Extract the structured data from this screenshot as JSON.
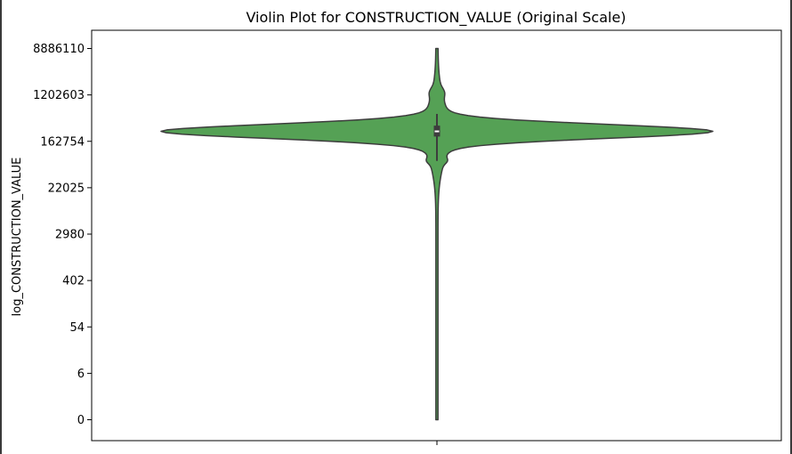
{
  "chart_data": {
    "type": "violin",
    "title": "Violin Plot for CONSTRUCTION_VALUE (Original Scale)",
    "xlabel": "",
    "ylabel": "log_CONSTRUCTION_VALUE",
    "y_scale": "log (ln(1+value))",
    "y_ticks": [
      "8886110",
      "1202603",
      "162754",
      "22025",
      "2980",
      "402",
      "54",
      "6",
      "0"
    ],
    "ylim": [
      0,
      8886110
    ],
    "grid": false,
    "legend": "none",
    "color": "#55a155",
    "edge_color": "#3d3d3d",
    "violin": {
      "min": 0,
      "max": 8886110,
      "q1": 200000,
      "median": 250000,
      "q3": 320000,
      "whisker_low": 70000,
      "whisker_high": 530000,
      "density_mode": 250000
    }
  }
}
